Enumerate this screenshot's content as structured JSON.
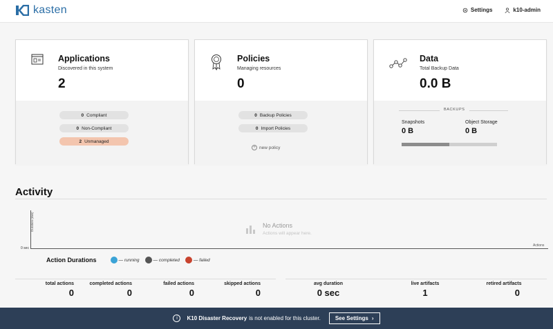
{
  "header": {
    "logo_text": "kasten",
    "settings_label": "Settings",
    "user_label": "k10-admin"
  },
  "cards": {
    "applications": {
      "title": "Applications",
      "subtitle": "Discovered in this system",
      "value": "2",
      "pills": [
        {
          "count": "0",
          "label": "Compliant"
        },
        {
          "count": "0",
          "label": "Non-Compliant"
        },
        {
          "count": "2",
          "label": "Unmanaged"
        }
      ]
    },
    "policies": {
      "title": "Policies",
      "subtitle": "Managing resources",
      "value": "0",
      "pills": [
        {
          "count": "0",
          "label": "Backup Policies"
        },
        {
          "count": "0",
          "label": "Import Policies"
        }
      ],
      "new_policy": "new policy"
    },
    "data": {
      "title": "Data",
      "subtitle": "Total Backup Data",
      "value": "0.0 B",
      "backups_label": "BACKUPS",
      "snapshots_label": "Snapshots",
      "snapshots_value": "0 B",
      "object_storage_label": "Object Storage",
      "object_storage_value": "0 B",
      "bar_fill_fraction": 0.5
    }
  },
  "activity": {
    "title": "Activity",
    "y_axis_label": "Duration (min)",
    "y_zero": "0 sec",
    "x_axis_label": "Actions",
    "empty_title": "No Actions",
    "empty_sub": "Actions will appear here.",
    "legend": {
      "title": "Action Durations",
      "items": [
        {
          "label": "— running",
          "color": "#3ba3d6"
        },
        {
          "label": "— completed",
          "color": "#555555"
        },
        {
          "label": "— failed",
          "color": "#c8432e"
        }
      ]
    },
    "stats": [
      {
        "label": "total actions",
        "value": "0"
      },
      {
        "label": "completed actions",
        "value": "0"
      },
      {
        "label": "failed actions",
        "value": "0"
      },
      {
        "label": "skipped actions",
        "value": "0"
      },
      {
        "label": "avg duration",
        "value": "0 sec"
      },
      {
        "label": "live artifacts",
        "value": "1"
      },
      {
        "label": "retired artifacts",
        "value": "0"
      }
    ]
  },
  "footer": {
    "bold": "K10 Disaster Recovery",
    "text": "is not enabled for this cluster.",
    "button": "See Settings"
  },
  "colors": {
    "brand": "#2b6ea6",
    "footer_bg": "#2d3f57",
    "unmanaged": "#f3c5ae"
  }
}
